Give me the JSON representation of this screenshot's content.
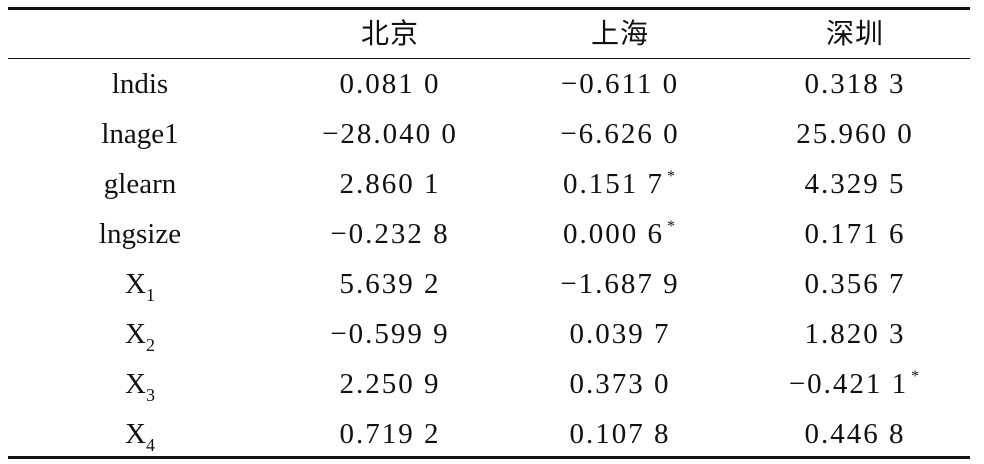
{
  "table": {
    "header": [
      "北京",
      "上海",
      "深圳"
    ],
    "rows": [
      {
        "label": {
          "text": "lndis"
        },
        "cells": [
          {
            "text": "0.081 0"
          },
          {
            "text": "−0.611 0"
          },
          {
            "text": "0.318 3"
          }
        ]
      },
      {
        "label": {
          "text": "lnage1"
        },
        "cells": [
          {
            "text": "−28.040 0"
          },
          {
            "text": "−6.626 0"
          },
          {
            "text": "25.960 0"
          }
        ]
      },
      {
        "label": {
          "text": "glearn"
        },
        "cells": [
          {
            "text": "2.860 1"
          },
          {
            "text": "0.151 7",
            "note": "*"
          },
          {
            "text": "4.329 5"
          }
        ]
      },
      {
        "label": {
          "text": "lngsize"
        },
        "cells": [
          {
            "text": "−0.232 8"
          },
          {
            "text": "0.000 6",
            "note": "*"
          },
          {
            "text": "0.171 6"
          }
        ]
      },
      {
        "label": {
          "text": "X",
          "sub": "1"
        },
        "cells": [
          {
            "text": "5.639 2"
          },
          {
            "text": "−1.687 9"
          },
          {
            "text": "0.356 7"
          }
        ]
      },
      {
        "label": {
          "text": "X",
          "sub": "2"
        },
        "cells": [
          {
            "text": "−0.599 9"
          },
          {
            "text": "0.039 7"
          },
          {
            "text": "1.820 3"
          }
        ]
      },
      {
        "label": {
          "text": "X",
          "sub": "3"
        },
        "cells": [
          {
            "text": "2.250 9"
          },
          {
            "text": "0.373 0"
          },
          {
            "text": "−0.421 1",
            "note": "*"
          }
        ]
      },
      {
        "label": {
          "text": "X",
          "sub": "4"
        },
        "cells": [
          {
            "text": "0.719 2"
          },
          {
            "text": "0.107 8"
          },
          {
            "text": "0.446 8"
          }
        ]
      }
    ]
  }
}
